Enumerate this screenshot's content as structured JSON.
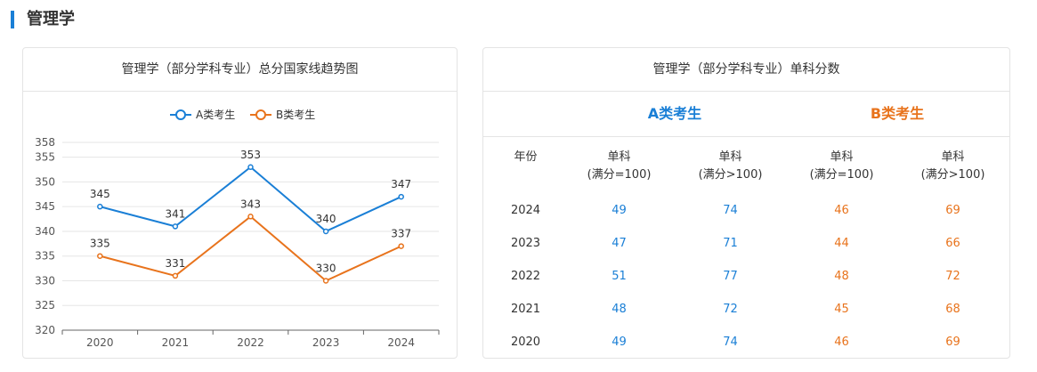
{
  "section": {
    "title": "管理学"
  },
  "chart": {
    "card_title": "管理学（部分学科专业）总分国家线趋势图"
  },
  "chart_data": {
    "type": "line",
    "categories": [
      "2020",
      "2021",
      "2022",
      "2023",
      "2024"
    ],
    "series": [
      {
        "name": "A类考生",
        "values": [
          345,
          341,
          353,
          340,
          347
        ],
        "color": "#1a7fd6"
      },
      {
        "name": "B类考生",
        "values": [
          335,
          331,
          343,
          330,
          337
        ],
        "color": "#e8731c"
      }
    ],
    "ylim": [
      320,
      358
    ],
    "yticks": [
      320,
      325,
      330,
      335,
      340,
      345,
      350,
      355,
      358
    ],
    "grid": true,
    "legend": "top-center"
  },
  "table": {
    "card_title": "管理学（部分学科专业）单科分数",
    "group_a": "A类考生",
    "group_b": "B类考生",
    "headers": {
      "year": "年份",
      "c1_line1": "单科",
      "c1_line2": "(满分=100)",
      "c2_line1": "单科",
      "c2_line2": "(满分>100)",
      "c3_line1": "单科",
      "c3_line2": "(满分=100)",
      "c4_line1": "单科",
      "c4_line2": "(满分>100)"
    },
    "rows": [
      [
        "2024",
        "49",
        "74",
        "46",
        "69"
      ],
      [
        "2023",
        "47",
        "71",
        "44",
        "66"
      ],
      [
        "2022",
        "51",
        "77",
        "48",
        "72"
      ],
      [
        "2021",
        "48",
        "72",
        "45",
        "68"
      ],
      [
        "2020",
        "49",
        "74",
        "46",
        "69"
      ]
    ],
    "colors": {
      "a": "#1a7fd6",
      "b": "#e8731c"
    }
  }
}
